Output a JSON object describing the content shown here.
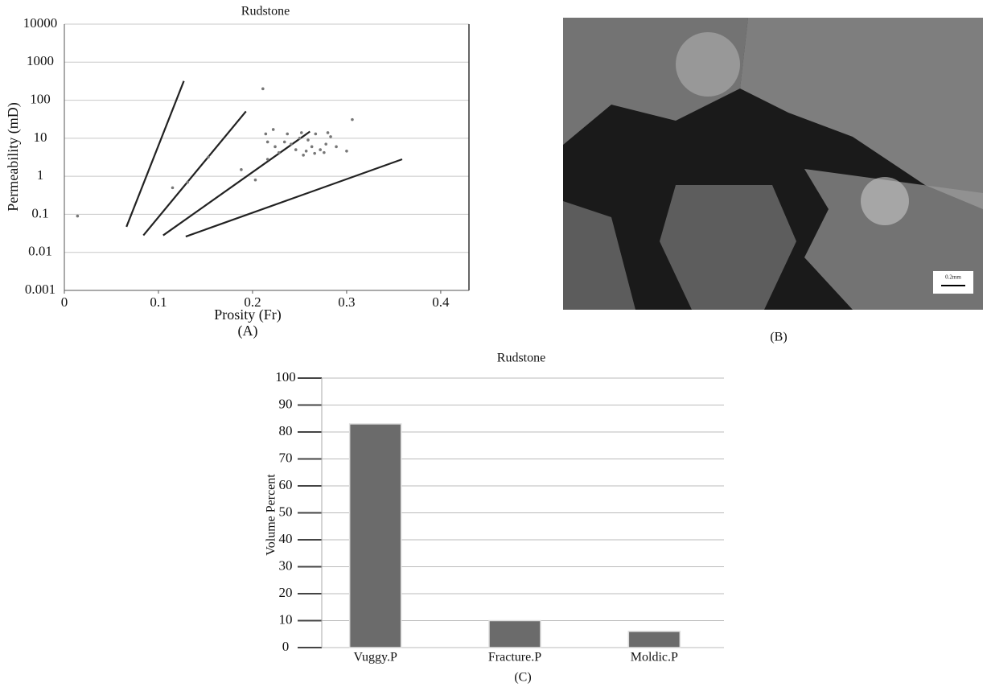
{
  "chart_data": [
    {
      "type": "scatter",
      "title": "Rudstone",
      "x_label": "Prosity (Fr)",
      "y_label": "Permeability (mD)",
      "caption": "(A)",
      "log_y": true,
      "grid": true,
      "color": "#777777",
      "line_color": "#222222",
      "xlim": [
        0,
        0.43
      ],
      "xticks": [
        0,
        0.1,
        0.2,
        0.3,
        0.4
      ],
      "ylim": [
        0.001,
        10000
      ],
      "yticks": [
        0.001,
        0.01,
        0.1,
        1,
        10,
        100,
        1000,
        10000
      ],
      "x": [
        0.014,
        0.211,
        0.115,
        0.131,
        0.153,
        0.188,
        0.203,
        0.214,
        0.222,
        0.216,
        0.216,
        0.224,
        0.228,
        0.234,
        0.237,
        0.241,
        0.246,
        0.25,
        0.252,
        0.254,
        0.257,
        0.259,
        0.263,
        0.266,
        0.267,
        0.272,
        0.276,
        0.278,
        0.28,
        0.283,
        0.289,
        0.3,
        0.306
      ],
      "values": [
        0.09,
        200,
        0.5,
        0.7,
        3.2,
        1.5,
        0.8,
        13,
        17,
        8,
        2.8,
        6,
        4.2,
        8,
        13,
        7,
        5,
        10,
        14,
        3.6,
        4.6,
        9,
        6,
        4,
        13,
        5,
        4.2,
        7,
        14,
        11,
        6,
        4.6,
        31
      ],
      "lines": [
        {
          "x": [
            0.066,
            0.127
          ],
          "values": [
            0.047,
            320
          ]
        },
        {
          "x": [
            0.084,
            0.193
          ],
          "values": [
            0.028,
            51
          ]
        },
        {
          "x": [
            0.105,
            0.261
          ],
          "values": [
            0.028,
            15
          ]
        },
        {
          "x": [
            0.129,
            0.359
          ],
          "values": [
            0.026,
            2.8
          ]
        }
      ]
    },
    {
      "type": "bar",
      "title": "Rudstone",
      "y_label": "Volume Percent",
      "caption": "(C)",
      "grid": true,
      "color": "#6b6b6b",
      "categories": [
        "Vuggy.P",
        "Fracture.P",
        "Moldic.P"
      ],
      "values": [
        83,
        10,
        6
      ],
      "ylim": [
        0,
        100
      ],
      "yticks": [
        0,
        10,
        20,
        30,
        40,
        50,
        60,
        70,
        80,
        90,
        100
      ]
    }
  ],
  "image": {
    "caption": "(B)",
    "scale_bar": "0.2mm"
  }
}
